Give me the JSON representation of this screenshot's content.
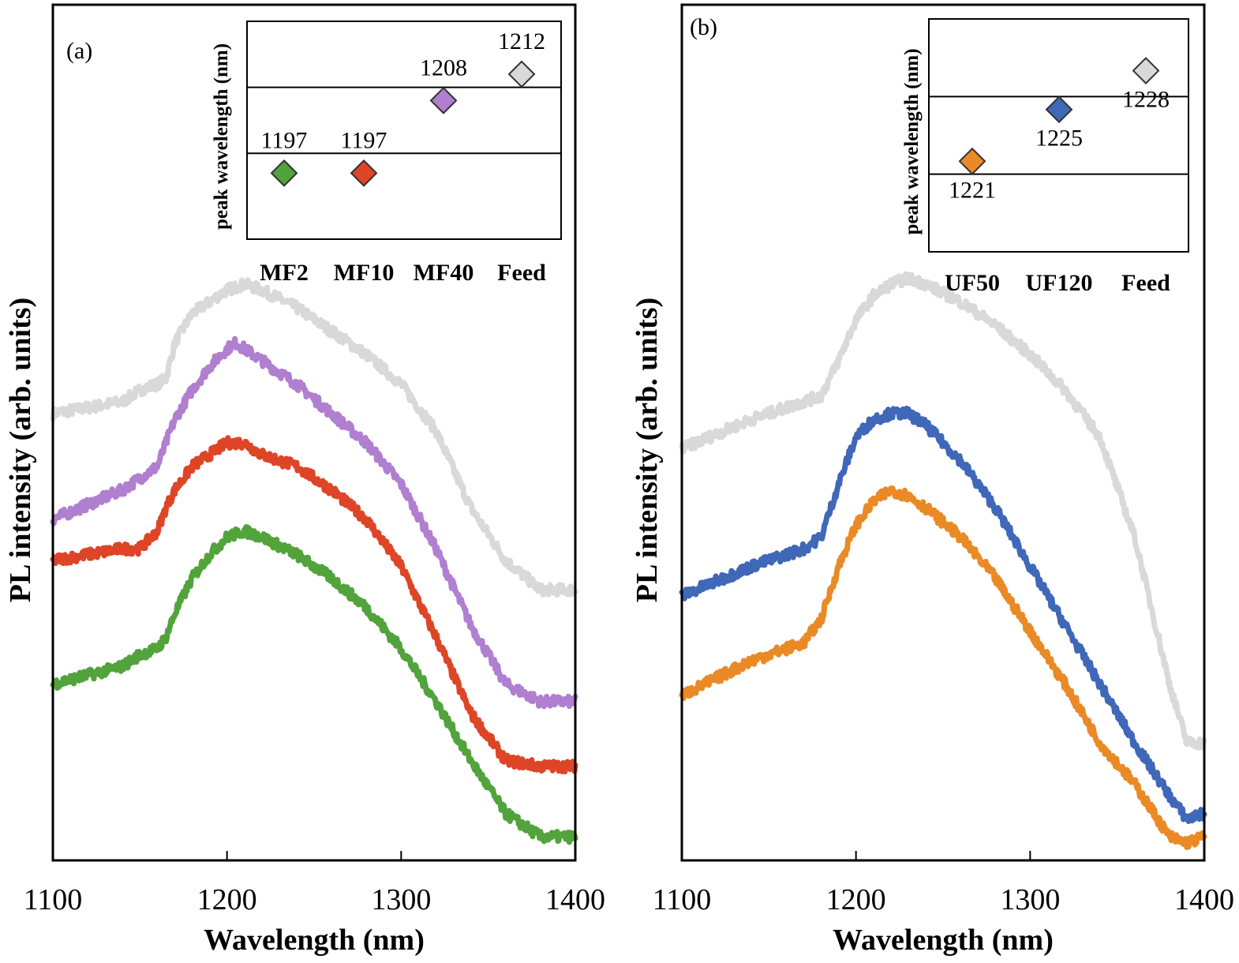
{
  "chart_data": [
    {
      "panel_label": "(a)",
      "type": "line",
      "xlabel": "Wavelength (nm)",
      "ylabel": "PL intensity  (arb. units)",
      "xlim": [
        1100,
        1400
      ],
      "x_ticks": [
        "1100",
        "1200",
        "1300",
        "1400"
      ],
      "y_ticks_shown": false,
      "series": [
        {
          "id": "Feed",
          "color": "#d9d9d9",
          "x": [
            1100,
            1140,
            1150,
            1160,
            1165,
            1170,
            1180,
            1190,
            1200,
            1210,
            1220,
            1240,
            1260,
            1280,
            1300,
            1320,
            1340,
            1360,
            1380,
            1390,
            1400
          ],
          "y": [
            0.76,
            0.78,
            0.8,
            0.81,
            0.82,
            0.88,
            0.93,
            0.95,
            0.97,
            0.98,
            0.97,
            0.94,
            0.9,
            0.86,
            0.81,
            0.73,
            0.6,
            0.51,
            0.46,
            0.46,
            0.46
          ]
        },
        {
          "id": "MF40",
          "color": "#b07fd0",
          "x": [
            1100,
            1140,
            1150,
            1160,
            1165,
            1170,
            1180,
            1190,
            1200,
            1205,
            1210,
            1220,
            1240,
            1260,
            1280,
            1300,
            1320,
            1340,
            1360,
            1380,
            1390,
            1400
          ],
          "y": [
            0.58,
            0.63,
            0.65,
            0.67,
            0.71,
            0.75,
            0.8,
            0.84,
            0.87,
            0.88,
            0.87,
            0.85,
            0.81,
            0.76,
            0.71,
            0.64,
            0.53,
            0.4,
            0.3,
            0.27,
            0.27,
            0.27
          ]
        },
        {
          "id": "MF10",
          "color": "#de4527",
          "x": [
            1100,
            1140,
            1150,
            1160,
            1165,
            1170,
            1180,
            1190,
            1200,
            1210,
            1220,
            1240,
            1260,
            1280,
            1300,
            1320,
            1340,
            1360,
            1380,
            1390,
            1400
          ],
          "y": [
            0.51,
            0.53,
            0.53,
            0.56,
            0.6,
            0.63,
            0.67,
            0.69,
            0.71,
            0.71,
            0.69,
            0.67,
            0.63,
            0.58,
            0.5,
            0.38,
            0.25,
            0.17,
            0.16,
            0.16,
            0.16
          ]
        },
        {
          "id": "MF2",
          "color": "#52a33c",
          "x": [
            1100,
            1140,
            1150,
            1160,
            1165,
            1170,
            1180,
            1190,
            1200,
            1210,
            1220,
            1240,
            1260,
            1280,
            1300,
            1320,
            1340,
            1360,
            1380,
            1390,
            1400
          ],
          "y": [
            0.3,
            0.33,
            0.35,
            0.36,
            0.38,
            0.42,
            0.48,
            0.52,
            0.55,
            0.56,
            0.55,
            0.52,
            0.48,
            0.43,
            0.36,
            0.27,
            0.17,
            0.08,
            0.04,
            0.04,
            0.04
          ]
        }
      ],
      "inset": {
        "ylabel": "peak wavelength (nm)",
        "categories": [
          "MF2",
          "MF10",
          "MF40",
          "Feed"
        ],
        "values": [
          1197,
          1197,
          1208,
          1212
        ],
        "labels": [
          "1197",
          "1197",
          "1208",
          "1212"
        ],
        "colors": [
          "#52a33c",
          "#de4527",
          "#b07fd0",
          "#d9d9d9"
        ],
        "gridlines": [
          1200,
          1210
        ],
        "ylim": [
          1187,
          1220
        ]
      }
    },
    {
      "panel_label": "(b)",
      "type": "line",
      "xlabel": "Wavelength (nm)",
      "ylabel": "PL intensity  (arb. units)",
      "xlim": [
        1100,
        1400
      ],
      "x_ticks": [
        "1100",
        "1200",
        "1300",
        "1400"
      ],
      "y_ticks_shown": false,
      "series": [
        {
          "id": "Feed",
          "color": "#d9d9d9",
          "x": [
            1100,
            1140,
            1160,
            1170,
            1180,
            1190,
            1200,
            1210,
            1220,
            1230,
            1240,
            1260,
            1280,
            1300,
            1320,
            1340,
            1360,
            1380,
            1390,
            1400
          ],
          "y": [
            0.7,
            0.75,
            0.77,
            0.78,
            0.79,
            0.85,
            0.92,
            0.96,
            0.98,
            0.99,
            0.98,
            0.95,
            0.91,
            0.86,
            0.8,
            0.72,
            0.55,
            0.3,
            0.2,
            0.2
          ]
        },
        {
          "id": "UF120",
          "color": "#3f68b8",
          "x": [
            1100,
            1140,
            1160,
            1170,
            1180,
            1190,
            1200,
            1210,
            1220,
            1230,
            1240,
            1260,
            1280,
            1300,
            1320,
            1340,
            1360,
            1380,
            1390,
            1400
          ],
          "y": [
            0.45,
            0.5,
            0.52,
            0.53,
            0.55,
            0.64,
            0.72,
            0.75,
            0.76,
            0.76,
            0.74,
            0.68,
            0.6,
            0.5,
            0.4,
            0.3,
            0.2,
            0.11,
            0.07,
            0.08
          ]
        },
        {
          "id": "UF50",
          "color": "#ea8a26",
          "x": [
            1100,
            1140,
            1160,
            1170,
            1180,
            1190,
            1200,
            1210,
            1220,
            1230,
            1240,
            1260,
            1280,
            1300,
            1320,
            1340,
            1360,
            1380,
            1390,
            1400
          ],
          "y": [
            0.28,
            0.34,
            0.36,
            0.37,
            0.41,
            0.5,
            0.57,
            0.61,
            0.63,
            0.62,
            0.6,
            0.55,
            0.48,
            0.39,
            0.3,
            0.2,
            0.13,
            0.04,
            0.03,
            0.04
          ]
        }
      ],
      "inset": {
        "ylabel": "peak wavelength (nm)",
        "categories": [
          "UF50",
          "UF120",
          "Feed"
        ],
        "values": [
          1221,
          1225,
          1228
        ],
        "labels": [
          "1221",
          "1225",
          "1228"
        ],
        "colors": [
          "#ea8a26",
          "#3f68b8",
          "#d9d9d9"
        ],
        "gridlines": [
          1220,
          1226
        ],
        "ylim": [
          1214,
          1232
        ]
      }
    }
  ]
}
